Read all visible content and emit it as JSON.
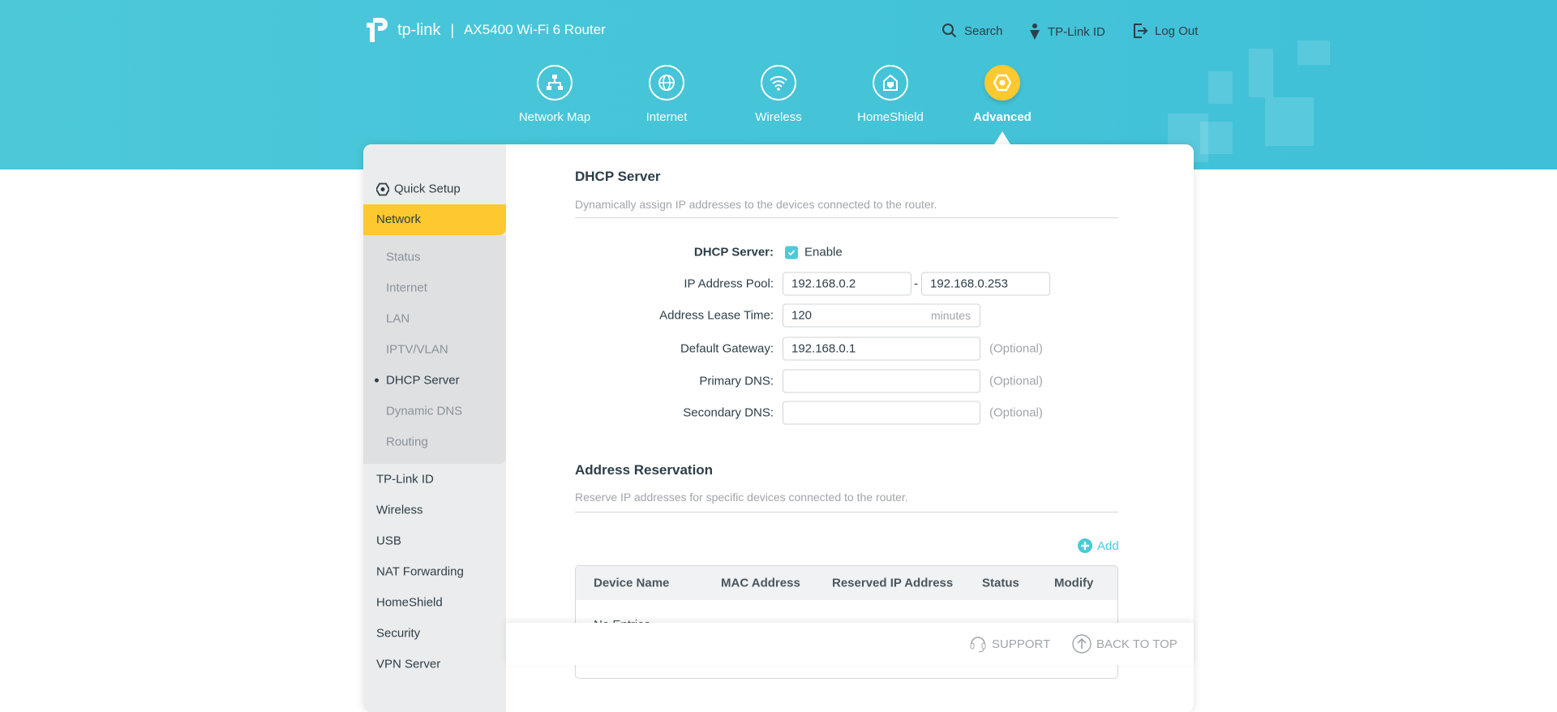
{
  "header": {
    "brand": "tp-link",
    "model": "AX5400 Wi-Fi 6 Router",
    "search": "Search",
    "tplink_id": "TP-Link ID",
    "logout": "Log Out"
  },
  "nav": [
    {
      "label": "Network Map",
      "icon": "network-map-icon"
    },
    {
      "label": "Internet",
      "icon": "globe-icon"
    },
    {
      "label": "Wireless",
      "icon": "wifi-icon"
    },
    {
      "label": "HomeShield",
      "icon": "homeshield-icon"
    },
    {
      "label": "Advanced",
      "icon": "advanced-gear-icon",
      "active": true
    }
  ],
  "sidebar": {
    "quick_setup": "Quick Setup",
    "network": "Network",
    "sub": [
      "Status",
      "Internet",
      "LAN",
      "IPTV/VLAN",
      "DHCP Server",
      "Dynamic DNS",
      "Routing"
    ],
    "items": [
      "TP-Link ID",
      "Wireless",
      "USB",
      "NAT Forwarding",
      "HomeShield",
      "Security",
      "VPN Server"
    ]
  },
  "dhcp": {
    "title": "DHCP Server",
    "desc": "Dynamically assign IP addresses to the devices connected to the router.",
    "server_label": "DHCP Server:",
    "enable_label": "Enable",
    "enabled": true,
    "pool_label": "IP Address Pool:",
    "pool_start": "192.168.0.2",
    "pool_end": "192.168.0.253",
    "pool_sep": "-",
    "lease_label": "Address Lease Time:",
    "lease_value": "120",
    "lease_unit": "minutes",
    "gateway_label": "Default Gateway:",
    "gateway_value": "192.168.0.1",
    "dns1_label": "Primary DNS:",
    "dns1_value": "",
    "dns2_label": "Secondary DNS:",
    "dns2_value": "",
    "optional": "(Optional)"
  },
  "reservation": {
    "title": "Address Reservation",
    "desc": "Reserve IP addresses for specific devices connected to the router.",
    "add": "Add",
    "columns": [
      "Device Name",
      "MAC Address",
      "Reserved IP Address",
      "Status",
      "Modify"
    ],
    "empty": "No Entries"
  },
  "footer": {
    "support": "SUPPORT",
    "back_to_top": "BACK TO TOP"
  },
  "colors": {
    "accent": "#4acbd6",
    "active": "#fdc92f"
  }
}
